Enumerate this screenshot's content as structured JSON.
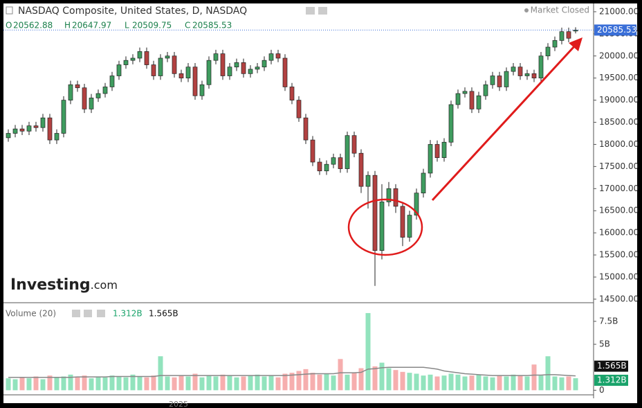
{
  "chart_data": {
    "type": "candlestick",
    "title": "NASDAQ Composite, United States, D, NASDAQ",
    "status": "Market Closed",
    "ohlc_labels": [
      "O",
      "H",
      "L",
      "C"
    ],
    "logo": "Investing",
    "logo_suffix": ".com",
    "x_axis_label": "2025",
    "up_color": "#3f9c5f",
    "down_color": "#b24141",
    "volume_up_color": "#92e3bd",
    "volume_down_color": "#f6aeae",
    "volume_ma_color": "#888888",
    "last_price_color": "#3a6fd8",
    "open": [
      18150,
      18250,
      18350,
      18300,
      18420,
      18380,
      18600,
      18100,
      18250,
      19000,
      19350,
      19280,
      18800,
      19050,
      19150,
      19300,
      19550,
      19800,
      19900,
      19950,
      20100,
      19800,
      19550,
      19950,
      20000,
      19600,
      19500,
      19750,
      19100,
      19350,
      19900,
      20050,
      19550,
      19750,
      19850,
      19600,
      19700,
      19750,
      19900,
      20050,
      19950,
      19300,
      19000,
      18600,
      18100,
      17600,
      17400,
      17550,
      17700,
      17450,
      18200,
      17800,
      17050,
      17300,
      15600,
      16700,
      17000,
      16600,
      15900,
      16400,
      16900,
      17350,
      18000,
      17700,
      18050,
      18900,
      19150,
      19200,
      18800,
      19100,
      19350,
      19550,
      19300,
      19650,
      19750,
      19550,
      19600,
      19500,
      20000,
      20200,
      20350,
      20550,
      20562.88
    ],
    "high": [
      18340,
      18440,
      18440,
      18510,
      18510,
      18690,
      18690,
      18340,
      19090,
      19440,
      19440,
      19370,
      19140,
      19240,
      19390,
      19640,
      19890,
      19990,
      20040,
      20190,
      20190,
      19890,
      20040,
      20090,
      20090,
      19690,
      19840,
      19840,
      19440,
      19990,
      20140,
      20140,
      19840,
      19940,
      19940,
      19790,
      19840,
      19990,
      20140,
      20140,
      20040,
      19390,
      19090,
      18690,
      18190,
      17690,
      17640,
      17790,
      17790,
      18290,
      18290,
      17890,
      17390,
      17400,
      17100,
      17150,
      17100,
      16700,
      16500,
      17000,
      17450,
      18100,
      18090,
      18140,
      18990,
      19240,
      19290,
      19290,
      19190,
      19440,
      19640,
      19640,
      19740,
      19840,
      19840,
      19690,
      19690,
      20090,
      20290,
      20440,
      20640,
      20640,
      20647.97
    ],
    "low": [
      18060,
      18160,
      18210,
      18210,
      18290,
      18290,
      18010,
      18010,
      18160,
      18910,
      19190,
      18710,
      18710,
      18960,
      19060,
      19210,
      19460,
      19710,
      19810,
      19860,
      19710,
      19460,
      19460,
      19860,
      19510,
      19410,
      19410,
      19010,
      19010,
      19260,
      19810,
      19460,
      19460,
      19660,
      19510,
      19510,
      19610,
      19660,
      19810,
      19860,
      19210,
      18910,
      18510,
      18010,
      17510,
      17310,
      17310,
      17460,
      17360,
      17360,
      17710,
      16900,
      16550,
      14800,
      15400,
      16600,
      16450,
      15700,
      15800,
      16300,
      16800,
      17250,
      17610,
      17610,
      17960,
      18810,
      19060,
      18710,
      18710,
      19010,
      19260,
      19210,
      19210,
      19560,
      19460,
      19460,
      19410,
      19410,
      19910,
      20110,
      20260,
      20310,
      20509.75
    ],
    "close": [
      18250,
      18350,
      18300,
      18420,
      18380,
      18600,
      18100,
      18250,
      19000,
      19350,
      19280,
      18800,
      19050,
      19150,
      19300,
      19550,
      19800,
      19900,
      19950,
      20100,
      19800,
      19550,
      19950,
      20000,
      19600,
      19500,
      19750,
      19100,
      19350,
      19900,
      20050,
      19550,
      19750,
      19850,
      19600,
      19700,
      19750,
      19900,
      20050,
      19950,
      19300,
      19000,
      18600,
      18100,
      17600,
      17400,
      17550,
      17700,
      17450,
      18200,
      17800,
      17050,
      17300,
      15600,
      16700,
      17000,
      16600,
      15900,
      16400,
      16900,
      17350,
      18000,
      17700,
      18050,
      18900,
      19150,
      19200,
      18800,
      19100,
      19350,
      19550,
      19300,
      19650,
      19750,
      19550,
      19600,
      19500,
      20000,
      20200,
      20350,
      20550,
      20400,
      20585.53
    ],
    "ylim": [
      14420,
      21140
    ],
    "yticks": [
      {
        "value": 14500,
        "label": "14500.00"
      },
      {
        "value": 15000,
        "label": "15000.00"
      },
      {
        "value": 15500,
        "label": "15500.00"
      },
      {
        "value": 16000,
        "label": "16000.00"
      },
      {
        "value": 16500,
        "label": "16500.00"
      },
      {
        "value": 17000,
        "label": "17000.00"
      },
      {
        "value": 17500,
        "label": "17500.00"
      },
      {
        "value": 18000,
        "label": "18000.00"
      },
      {
        "value": 18500,
        "label": "18500.00"
      },
      {
        "value": 19000,
        "label": "19000.00"
      },
      {
        "value": 19500,
        "label": "19500.00"
      },
      {
        "value": 20000,
        "label": "20000.00"
      },
      {
        "value": 20500,
        "label": "20500.00"
      },
      {
        "value": 21000,
        "label": "21000.00"
      }
    ],
    "volume_title": "Volume (20)",
    "volume": {
      "values": [
        1.3,
        1.2,
        1.4,
        1.3,
        1.5,
        1.2,
        1.6,
        1.4,
        1.5,
        1.7,
        1.4,
        1.6,
        1.3,
        1.5,
        1.4,
        1.6,
        1.5,
        1.4,
        1.7,
        1.5,
        1.4,
        1.6,
        3.7,
        1.5,
        1.4,
        1.6,
        1.5,
        1.8,
        1.4,
        1.6,
        1.5,
        1.7,
        1.6,
        1.4,
        1.5,
        1.6,
        1.7,
        1.5,
        1.6,
        1.4,
        1.8,
        1.9,
        2.1,
        2.3,
        1.9,
        1.7,
        1.8,
        1.6,
        3.4,
        1.7,
        1.9,
        2.4,
        8.4,
        2.6,
        3.0,
        2.4,
        2.2,
        2.0,
        1.9,
        1.8,
        1.6,
        1.7,
        1.5,
        1.6,
        1.8,
        1.7,
        1.5,
        1.6,
        1.7,
        1.5,
        1.4,
        1.6,
        1.5,
        1.7,
        1.6,
        1.5,
        2.8,
        1.6,
        3.7,
        1.5,
        1.4,
        1.5,
        1.312
      ],
      "last_label": "1.312B"
    },
    "volume_ma": {
      "values": [
        1.4,
        1.4,
        1.4,
        1.4,
        1.4,
        1.4,
        1.4,
        1.4,
        1.4,
        1.4,
        1.45,
        1.45,
        1.45,
        1.45,
        1.45,
        1.5,
        1.5,
        1.5,
        1.5,
        1.5,
        1.5,
        1.5,
        1.6,
        1.6,
        1.6,
        1.6,
        1.6,
        1.6,
        1.6,
        1.6,
        1.6,
        1.6,
        1.6,
        1.6,
        1.6,
        1.6,
        1.6,
        1.6,
        1.6,
        1.6,
        1.6,
        1.65,
        1.7,
        1.75,
        1.8,
        1.8,
        1.8,
        1.8,
        1.9,
        1.9,
        1.9,
        1.95,
        2.3,
        2.35,
        2.45,
        2.5,
        2.5,
        2.5,
        2.5,
        2.5,
        2.5,
        2.4,
        2.3,
        2.1,
        2.0,
        1.9,
        1.8,
        1.75,
        1.7,
        1.65,
        1.6,
        1.6,
        1.6,
        1.6,
        1.6,
        1.6,
        1.65,
        1.65,
        1.7,
        1.7,
        1.65,
        1.6,
        1.565
      ],
      "last_label": "1.565B"
    },
    "y2lim": [
      -0.5,
      9.3
    ],
    "y2ticks": [
      0,
      {
        "value": 5,
        "label": "5B"
      },
      {
        "value": 7.5,
        "label": "7.5B"
      }
    ]
  }
}
